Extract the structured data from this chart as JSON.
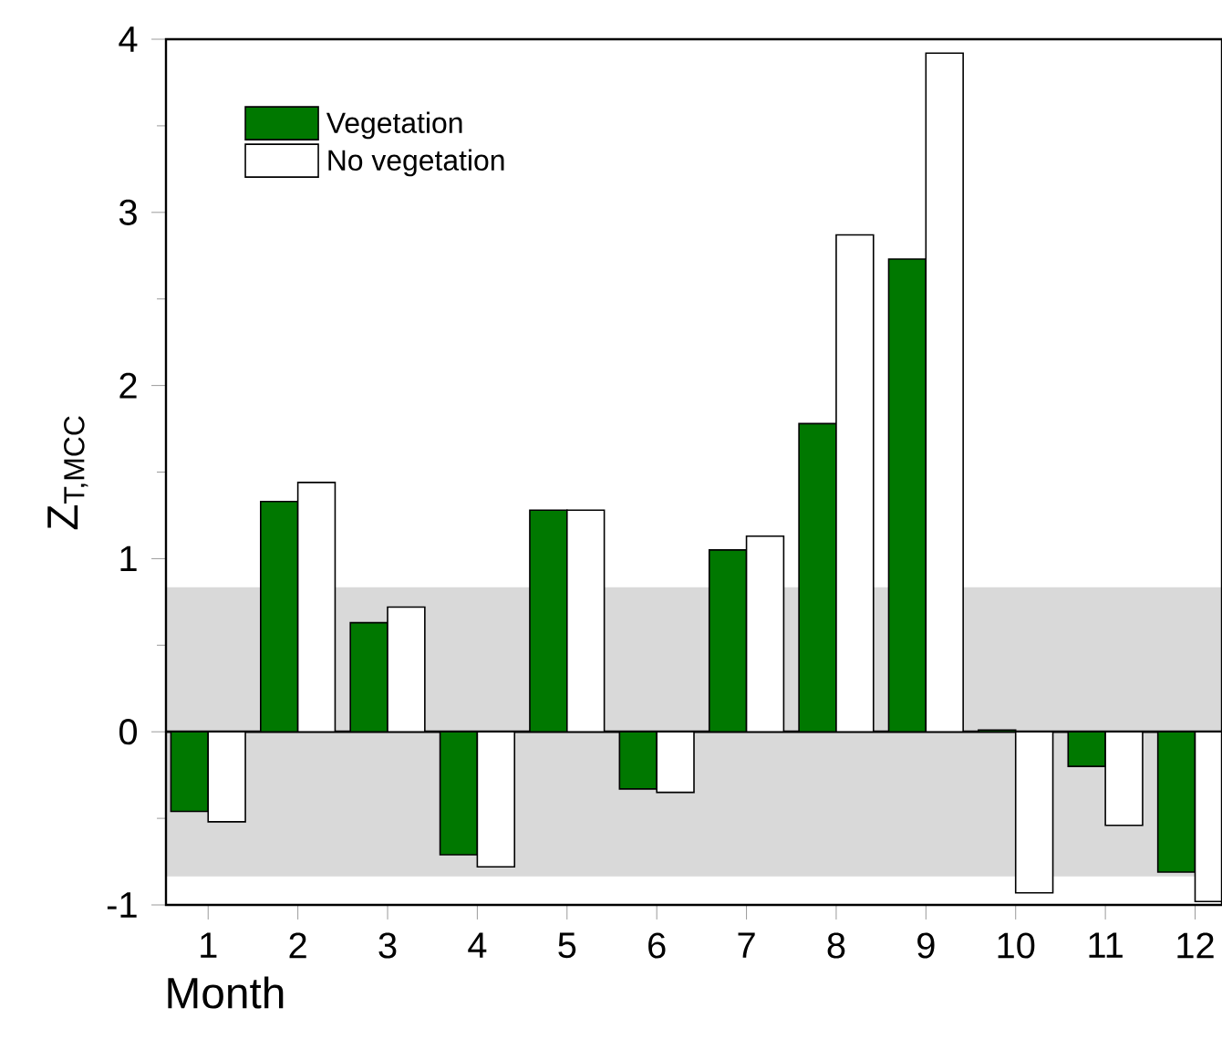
{
  "chart_data": {
    "type": "bar",
    "xlabel": "Month",
    "ylabel": "Z$_{T,MCC}$",
    "categories": [
      "1",
      "2",
      "3",
      "4",
      "5",
      "6",
      "7",
      "8",
      "9",
      "10",
      "11",
      "12"
    ],
    "series": [
      {
        "name": "Vegetation",
        "color": "#007800",
        "values": [
          -0.46,
          1.33,
          0.63,
          -0.71,
          1.28,
          -0.33,
          1.05,
          1.78,
          2.73,
          0.01,
          -0.2,
          -0.81
        ]
      },
      {
        "name": "No vegetation",
        "color": "#ffffff",
        "values": [
          -0.52,
          1.44,
          0.72,
          -0.78,
          1.28,
          -0.35,
          1.13,
          2.87,
          3.92,
          -0.93,
          -0.54,
          -0.98
        ]
      }
    ],
    "ylim": [
      -1,
      4
    ],
    "yticks": [
      -1,
      0,
      1,
      2,
      3,
      4
    ],
    "bands": [
      {
        "axis": "y",
        "from": -0.835,
        "to": 0.835,
        "color": "#d9d9d9"
      }
    ],
    "ref_lines": [
      {
        "axis": "y",
        "value": 0,
        "color": "#000000"
      }
    ],
    "legend": "top left",
    "grid": false
  }
}
